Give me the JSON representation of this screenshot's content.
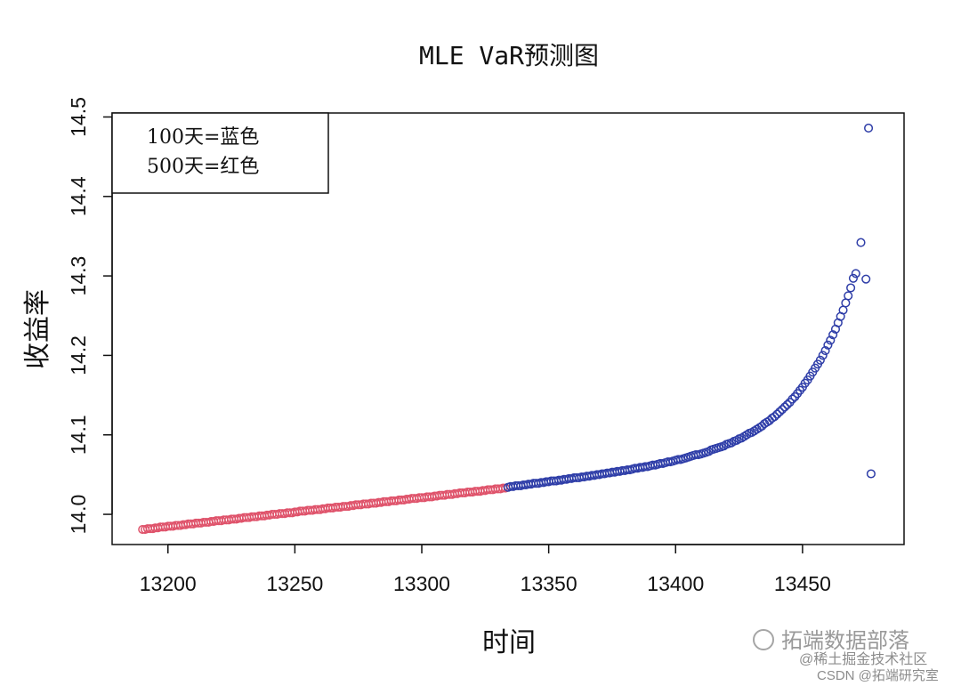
{
  "chart_data": {
    "type": "scatter",
    "title": "MLE VaR预测图",
    "xlabel": "时间",
    "ylabel": "收益率",
    "xlim": [
      13178,
      13490
    ],
    "ylim": [
      13.962,
      14.505
    ],
    "x_ticks": [
      13200,
      13250,
      13300,
      13350,
      13400,
      13450
    ],
    "y_ticks": [
      "14.0",
      "14.1",
      "14.2",
      "14.3",
      "14.4",
      "14.5"
    ],
    "grid": false,
    "legend": {
      "placement": "top-left",
      "lines": [
        "100天=蓝色",
        "500天=红色"
      ]
    },
    "marker": "open-circle",
    "series": [
      {
        "color": "#DF536B",
        "x_start": 13190,
        "x_step": 1,
        "y": [
          13.981,
          13.981,
          13.982,
          13.982,
          13.982,
          13.983,
          13.983,
          13.984,
          13.984,
          13.984,
          13.985,
          13.985,
          13.985,
          13.986,
          13.986,
          13.986,
          13.987,
          13.987,
          13.988,
          13.988,
          13.988,
          13.989,
          13.989,
          13.989,
          13.99,
          13.99,
          13.99,
          13.991,
          13.991,
          13.992,
          13.992,
          13.992,
          13.993,
          13.993,
          13.993,
          13.994,
          13.994,
          13.994,
          13.995,
          13.995,
          13.996,
          13.996,
          13.996,
          13.997,
          13.997,
          13.997,
          13.998,
          13.998,
          13.998,
          13.999,
          13.999,
          14.0,
          14.0,
          14.0,
          14.001,
          14.001,
          14.001,
          14.002,
          14.002,
          14.002,
          14.003,
          14.003,
          14.004,
          14.004,
          14.004,
          14.005,
          14.005,
          14.005,
          14.006,
          14.006,
          14.006,
          14.007,
          14.007,
          14.008,
          14.008,
          14.008,
          14.009,
          14.009,
          14.009,
          14.01,
          14.01,
          14.01,
          14.011,
          14.011,
          14.012,
          14.012,
          14.012,
          14.013,
          14.013,
          14.013,
          14.014,
          14.014,
          14.014,
          14.015,
          14.015,
          14.016,
          14.016,
          14.016,
          14.017,
          14.017,
          14.017,
          14.018,
          14.018,
          14.018,
          14.019,
          14.019,
          14.02,
          14.02,
          14.02,
          14.021,
          14.021,
          14.021,
          14.022,
          14.022,
          14.022,
          14.023,
          14.023,
          14.024,
          14.024,
          14.024,
          14.025,
          14.025,
          14.025,
          14.026,
          14.026,
          14.027,
          14.027,
          14.027,
          14.028,
          14.028,
          14.028,
          14.029,
          14.029,
          14.029,
          14.03,
          14.03,
          14.031,
          14.031,
          14.031,
          14.032,
          14.032,
          14.032,
          14.033,
          14.033
        ]
      },
      {
        "color": "#2F3EA8",
        "x_start": 13334,
        "x_step": 1,
        "y": [
          14.034,
          14.035,
          14.035,
          14.036,
          14.036,
          14.036,
          14.037,
          14.037,
          14.038,
          14.038,
          14.039,
          14.039,
          14.039,
          14.04,
          14.04,
          14.041,
          14.041,
          14.042,
          14.042,
          14.042,
          14.043,
          14.043,
          14.044,
          14.044,
          14.045,
          14.045,
          14.046,
          14.046,
          14.046,
          14.047,
          14.047,
          14.048,
          14.048,
          14.049,
          14.049,
          14.05,
          14.05,
          14.051,
          14.051,
          14.052,
          14.052,
          14.053,
          14.053,
          14.054,
          14.054,
          14.055,
          14.055,
          14.056,
          14.056,
          14.057,
          14.058,
          14.058,
          14.059,
          14.059,
          14.06,
          14.06,
          14.061,
          14.062,
          14.062,
          14.063,
          14.064,
          14.064,
          14.065,
          14.066,
          14.066,
          14.067,
          14.068,
          14.069,
          14.069,
          14.07,
          14.071,
          14.072,
          14.073,
          14.074,
          14.075,
          14.075,
          14.076,
          14.077,
          14.078,
          14.079,
          14.081,
          14.082,
          14.083,
          14.084,
          14.085,
          14.086,
          14.088,
          14.089,
          14.09,
          14.092,
          14.093,
          14.095,
          14.096,
          14.098,
          14.1,
          14.102,
          14.103,
          14.105,
          14.107,
          14.109,
          14.111,
          14.114,
          14.116,
          14.118,
          14.121,
          14.123,
          14.126,
          14.129,
          14.132,
          14.135,
          14.138,
          14.141,
          14.145,
          14.148,
          14.152,
          14.156,
          14.16,
          14.165,
          14.169,
          14.174,
          14.179,
          14.184,
          14.189,
          14.194,
          14.2,
          14.206,
          14.213,
          14.219,
          14.226,
          14.233,
          14.241,
          14.249,
          14.257,
          14.266,
          14.275,
          14.285
        ],
        "extra_points": [
          {
            "x": 13470,
            "y": 14.297
          },
          {
            "x": 13471,
            "y": 14.303
          },
          {
            "x": 13473,
            "y": 14.342
          },
          {
            "x": 13475,
            "y": 14.296
          },
          {
            "x": 13476,
            "y": 14.486
          },
          {
            "x": 13477,
            "y": 14.051
          }
        ]
      }
    ]
  },
  "watermarks": {
    "wechat": "拓端数据部落",
    "juejin": "@稀土掘金技术社区",
    "csdn": "CSDN @拓端研究室"
  }
}
